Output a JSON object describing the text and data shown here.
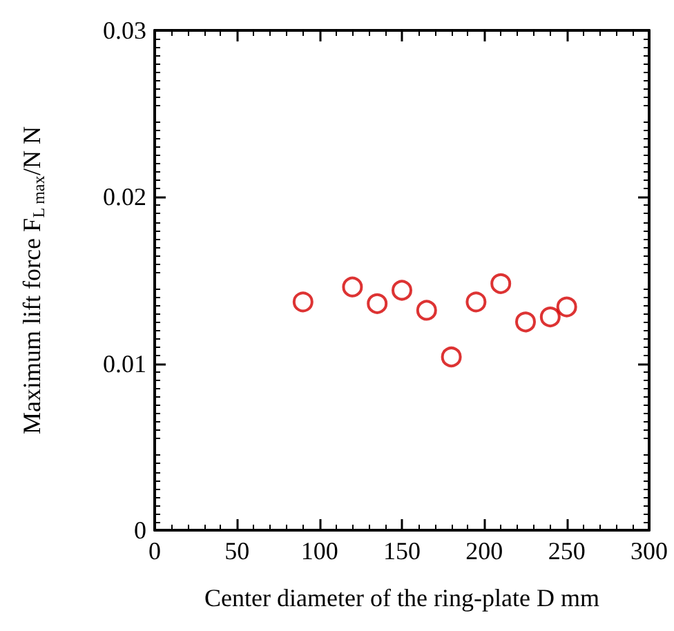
{
  "chart_data": {
    "type": "scatter",
    "xlabel": "Center diameter of the ring-plate D mm",
    "ylabel": "Maximum lift force F$_{L max}$/N N",
    "x": [
      90,
      120,
      135,
      150,
      165,
      180,
      195,
      210,
      225,
      240,
      250
    ],
    "series": [
      {
        "color": "#d40000",
        "values": [
          0.0137,
          0.0146,
          0.0136,
          0.0144,
          0.0132,
          0.0104,
          0.0137,
          0.0148,
          0.0125,
          0.0128,
          0.0134
        ]
      }
    ],
    "xlim": [
      0,
      300
    ],
    "xticks": [
      0,
      50,
      100,
      150,
      200,
      250,
      300
    ],
    "ylim": [
      0,
      0.03
    ],
    "yticks": [
      0,
      0.01,
      0.02,
      0.03
    ],
    "grid": false,
    "marker": "circle"
  }
}
